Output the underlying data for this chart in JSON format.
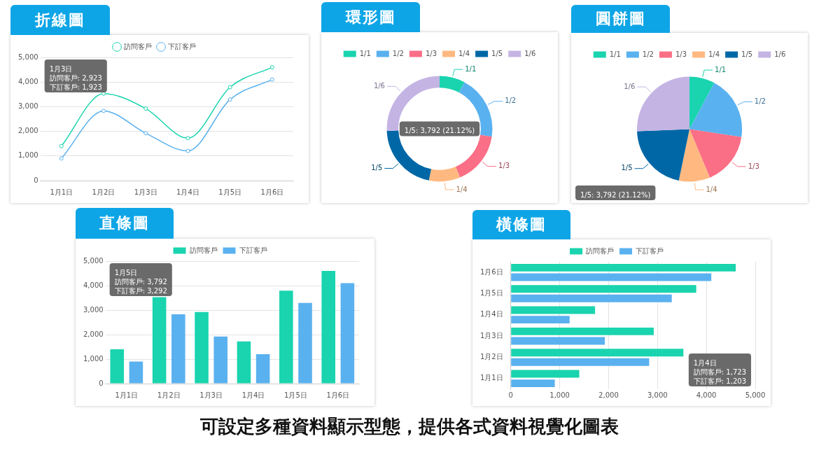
{
  "chart_data": [
    {
      "type": "line",
      "title": "折線圖",
      "categories": [
        "1月1日",
        "1月2日",
        "1月3日",
        "1月4日",
        "1月5日",
        "1月6日"
      ],
      "series": [
        {
          "name": "訪問客戶",
          "color": "#19d4ae",
          "values": [
            1400,
            3530,
            2923,
            1723,
            3792,
            4600
          ]
        },
        {
          "name": "下訂客戶",
          "color": "#5ab1ef",
          "values": [
            900,
            2830,
            1923,
            1203,
            3292,
            4100
          ]
        }
      ],
      "ylim": [
        0,
        5000
      ],
      "yticks": [
        {
          "value": 0,
          "label": "0"
        },
        {
          "value": 1000,
          "label": "1,000"
        },
        {
          "value": 2000,
          "label": "2,000"
        },
        {
          "value": 3000,
          "label": "3,000"
        },
        {
          "value": 4000,
          "label": "4,000"
        },
        {
          "value": 5000,
          "label": "5,000"
        }
      ],
      "grid": "y",
      "legend": "top",
      "marker": "circle",
      "annotations": [
        "1月3日",
        "訪問客戶: 2,923",
        "下訂客戶: 1,923"
      ]
    },
    {
      "type": "donut",
      "title": "環形圖",
      "categories": [
        "1/1",
        "1/2",
        "1/3",
        "1/4",
        "1/5",
        "1/6"
      ],
      "values": [
        7.8,
        19.58,
        16.28,
        9.6,
        21.12,
        25.62
      ],
      "colors": [
        "#19d4ae",
        "#5ab1ef",
        "#fa6e86",
        "#ffb980",
        "#0067a6",
        "#c4b4e4"
      ],
      "legend": "top",
      "annotations": [
        "1/5: 3,792 (21.12%)"
      ]
    },
    {
      "type": "pie",
      "title": "圓餅圖",
      "categories": [
        "1/1",
        "1/2",
        "1/3",
        "1/4",
        "1/5",
        "1/6"
      ],
      "values": [
        7.8,
        19.58,
        16.28,
        9.6,
        21.12,
        25.62
      ],
      "colors": [
        "#19d4ae",
        "#5ab1ef",
        "#fa6e86",
        "#ffb980",
        "#0067a6",
        "#c4b4e4"
      ],
      "legend": "top",
      "annotations": [
        "1/5: 3,792 (21.12%)"
      ]
    },
    {
      "type": "bar",
      "title": "直條圖",
      "categories": [
        "1月1日",
        "1月2日",
        "1月3日",
        "1月4日",
        "1月5日",
        "1月6日"
      ],
      "series": [
        {
          "name": "訪問客戶",
          "color": "#19d4ae",
          "values": [
            1400,
            3530,
            2923,
            1723,
            3792,
            4600
          ]
        },
        {
          "name": "下訂客戶",
          "color": "#5ab1ef",
          "values": [
            900,
            2830,
            1923,
            1203,
            3292,
            4100
          ]
        }
      ],
      "ylim": [
        0,
        5000
      ],
      "yticks": [
        {
          "value": 0,
          "label": "0"
        },
        {
          "value": 1000,
          "label": "1,000"
        },
        {
          "value": 2000,
          "label": "2,000"
        },
        {
          "value": 3000,
          "label": "3,000"
        },
        {
          "value": 4000,
          "label": "4,000"
        },
        {
          "value": 5000,
          "label": "5,000"
        }
      ],
      "grid": "y",
      "legend": "top",
      "annotations": [
        "1月5日",
        "訪問客戶: 3,792",
        "下訂客戶: 3,292"
      ]
    },
    {
      "type": "bar",
      "title": "橫條圖",
      "orientation": "horizontal",
      "categories": [
        "1月6日",
        "1月5日",
        "1月4日",
        "1月3日",
        "1月2日",
        "1月1日"
      ],
      "series": [
        {
          "name": "訪問客戶",
          "color": "#19d4ae",
          "values": [
            4600,
            3792,
            1723,
            2923,
            3530,
            1400
          ]
        },
        {
          "name": "下訂客戶",
          "color": "#5ab1ef",
          "values": [
            4100,
            3292,
            1203,
            1923,
            2830,
            900
          ]
        }
      ],
      "xlim": [
        0,
        5000
      ],
      "xticks": [
        {
          "value": 0,
          "label": "0"
        },
        {
          "value": 1000,
          "label": "1,000"
        },
        {
          "value": 2000,
          "label": "2,000"
        },
        {
          "value": 3000,
          "label": "3,000"
        },
        {
          "value": 4000,
          "label": "4,000"
        },
        {
          "value": 5000,
          "label": "5,000"
        }
      ],
      "grid": "x",
      "legend": "top",
      "annotations": [
        "1月4日",
        "訪問客戶: 1,723",
        "下訂客戶: 1,203"
      ]
    },
    {
      "type": "other",
      "title": "可設定多種資料顯示型態，提供各式資料視覺化圖表"
    }
  ]
}
